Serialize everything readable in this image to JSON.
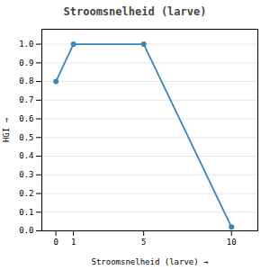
{
  "chart_data": {
    "type": "line",
    "title": "Stroomsnelheid (larve)",
    "x_label": "Stroomsnelheid (larve)",
    "y_label": "HGI",
    "x": [
      0,
      1,
      5,
      10
    ],
    "values": [
      0.8,
      1.0,
      1.0,
      0.02
    ],
    "color": "#3a86b4",
    "marker": "circle",
    "xlim": [
      -0.8,
      11.5
    ],
    "ylim": [
      0.0,
      1.08
    ],
    "xticks": [
      0,
      1,
      5,
      10
    ],
    "yticks": [
      {
        "value": 0.0,
        "label": "0.0"
      },
      0.1,
      0.2,
      0.3,
      0.4,
      0.5,
      0.6,
      0.7,
      0.8,
      0.9,
      {
        "value": 1.0,
        "label": "1.0"
      }
    ],
    "grid": true
  }
}
